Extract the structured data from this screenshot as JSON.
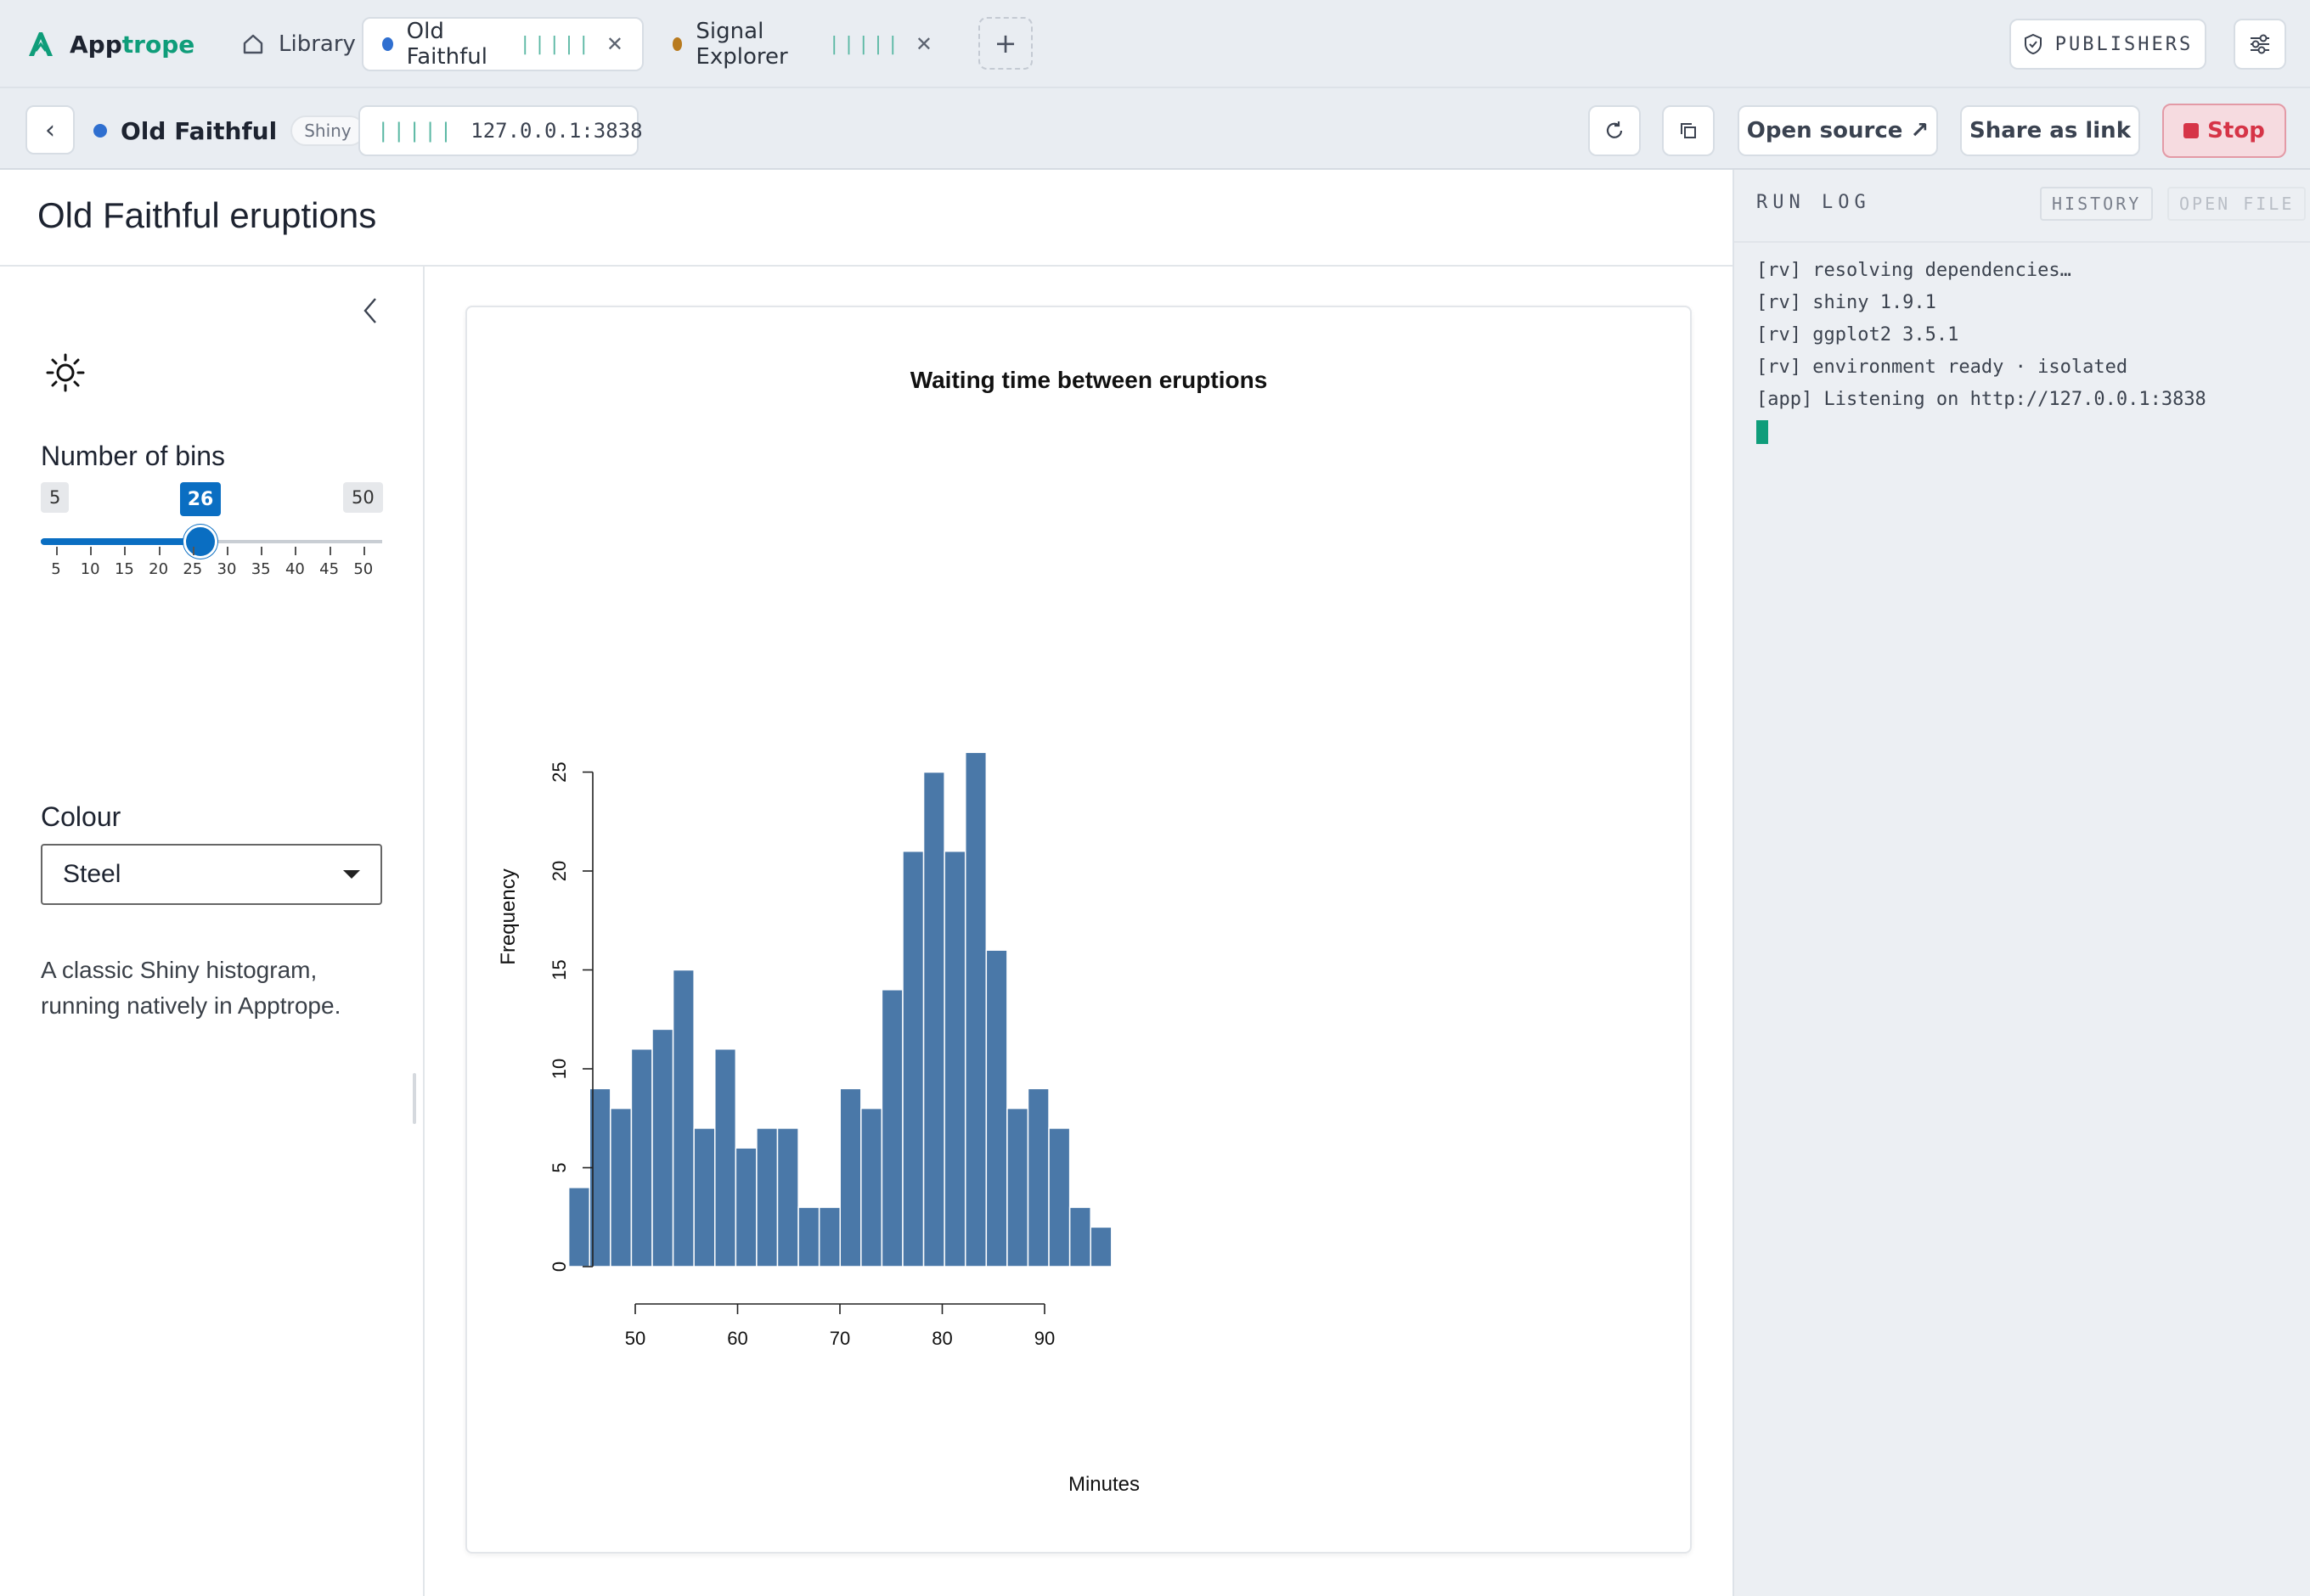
{
  "brand": {
    "name_part1": "App",
    "name_part2": "trope"
  },
  "tabs": [
    {
      "label": "Library"
    },
    {
      "label": "Old Faithful",
      "dot_color": "#2f6fd0",
      "activity": "|||||"
    },
    {
      "label": "Signal Explorer",
      "dot_color": "#b87a1e",
      "activity": "|||||"
    }
  ],
  "new_tab": "+",
  "publishers_label": "PUBLISHERS",
  "toolbar": {
    "app_title": "Old Faithful",
    "app_badge": "Shiny",
    "address_activity": "|||||",
    "address": "127.0.0.1:3838",
    "open_source": "Open source ↗",
    "share": "Share as link",
    "stop": "Stop"
  },
  "app": {
    "title": "Old Faithful eruptions",
    "bins_label": "Number of bins",
    "bins_min": "5",
    "bins_value": "26",
    "bins_max": "50",
    "ticks": [
      "5",
      "10",
      "15",
      "20",
      "25",
      "30",
      "35",
      "40",
      "45",
      "50"
    ],
    "colour_label": "Colour",
    "colour_value": "Steel",
    "description": "A classic Shiny histogram, running natively in Apptrope."
  },
  "chart_data": {
    "type": "bar",
    "title": "Waiting time between eruptions",
    "xlabel": "Minutes",
    "ylabel": "Frequency",
    "x_ticks": [
      50,
      60,
      70,
      80,
      90
    ],
    "y_ticks": [
      0,
      5,
      10,
      15,
      20,
      25
    ],
    "bin_start": 43.5,
    "bin_width": 2.04,
    "values": [
      4,
      9,
      8,
      11,
      12,
      15,
      7,
      11,
      6,
      7,
      7,
      3,
      3,
      9,
      8,
      14,
      21,
      25,
      21,
      26,
      16,
      8,
      9,
      7,
      3,
      2
    ],
    "bar_color": "#4a78a8",
    "ylim": [
      0,
      26
    ]
  },
  "runlog": {
    "title": "RUN LOG",
    "history": "HISTORY",
    "open_file": "OPEN FILE",
    "lines": [
      "[rv] resolving dependencies…",
      "[rv] shiny 1.9.1",
      "[rv] ggplot2 3.5.1",
      "[rv] environment ready · isolated",
      "[app] Listening on http://127.0.0.1:3838"
    ]
  }
}
